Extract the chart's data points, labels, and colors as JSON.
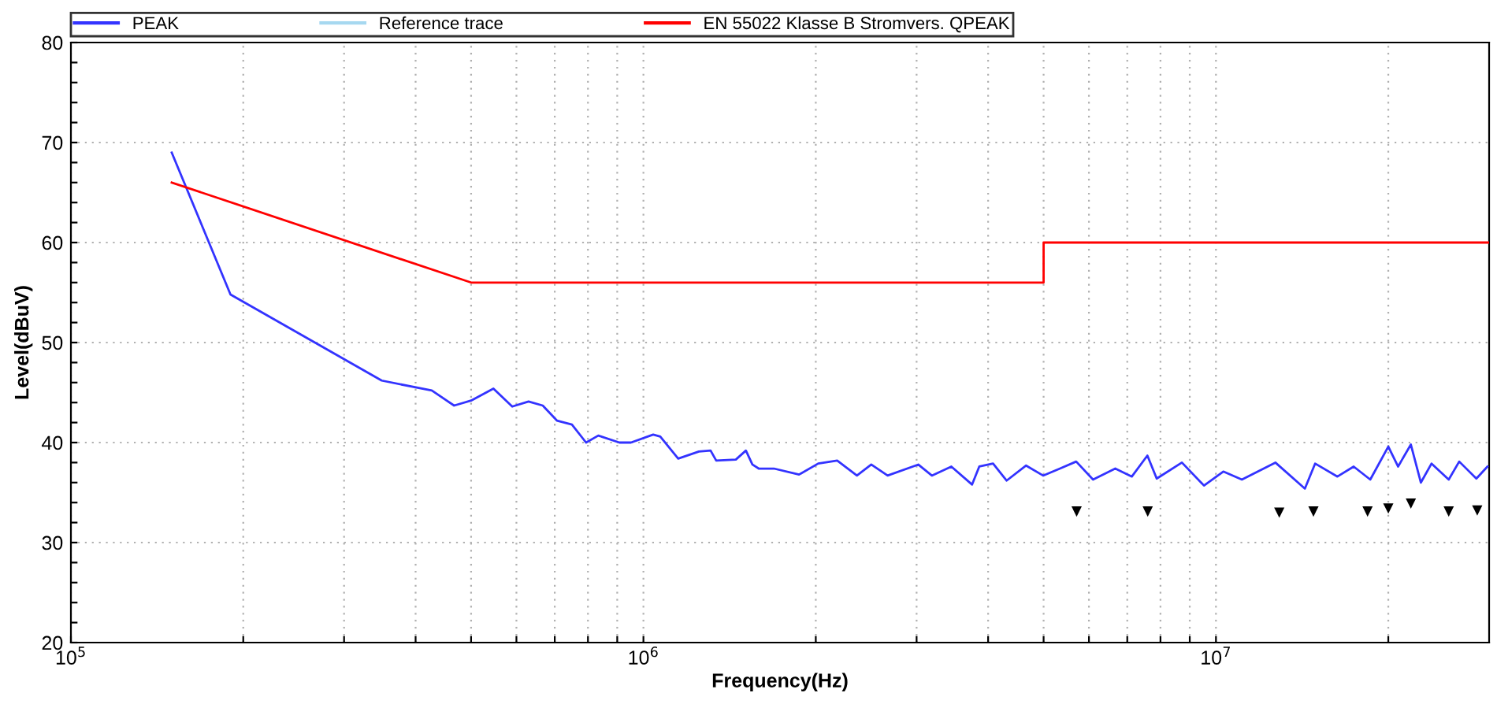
{
  "chart_data": {
    "type": "line",
    "xlabel": "Frequency(Hz)",
    "ylabel": "Level(dBuV)",
    "log": "x",
    "grid": true,
    "legend": "top",
    "line_style": "solid",
    "marker": "none",
    "xlim": [
      100000,
      30000000
    ],
    "ylim": [
      20,
      80
    ],
    "xticks": [
      {
        "value": 100000,
        "label": "10$^{5}$"
      },
      {
        "value": 200000,
        "label": null
      },
      {
        "value": 300000,
        "label": null
      },
      {
        "value": 400000,
        "label": null
      },
      {
        "value": 500000,
        "label": null
      },
      {
        "value": 600000,
        "label": null
      },
      {
        "value": 700000,
        "label": null
      },
      {
        "value": 800000,
        "label": null
      },
      {
        "value": 900000,
        "label": null
      },
      {
        "value": 1000000,
        "label": "10$^{6}$"
      },
      {
        "value": 2000000,
        "label": null
      },
      {
        "value": 3000000,
        "label": null
      },
      {
        "value": 4000000,
        "label": null
      },
      {
        "value": 5000000,
        "label": null
      },
      {
        "value": 6000000,
        "label": null
      },
      {
        "value": 7000000,
        "label": null
      },
      {
        "value": 8000000,
        "label": null
      },
      {
        "value": 9000000,
        "label": null
      },
      {
        "value": 10000000,
        "label": "10$^{7}$"
      },
      {
        "value": 20000000,
        "label": null
      }
    ],
    "yticks": [
      20,
      {
        "value": 22,
        "label": null
      },
      {
        "value": 24,
        "label": null
      },
      {
        "value": 26,
        "label": null
      },
      {
        "value": 28,
        "label": null
      },
      30,
      {
        "value": 32,
        "label": null
      },
      {
        "value": 34,
        "label": null
      },
      {
        "value": 36,
        "label": null
      },
      {
        "value": 38,
        "label": null
      },
      40,
      {
        "value": 42,
        "label": null
      },
      {
        "value": 44,
        "label": null
      },
      {
        "value": 46,
        "label": null
      },
      {
        "value": 48,
        "label": null
      },
      50,
      {
        "value": 52,
        "label": null
      },
      {
        "value": 54,
        "label": null
      },
      {
        "value": 56,
        "label": null
      },
      {
        "value": 58,
        "label": null
      },
      60,
      {
        "value": 62,
        "label": null
      },
      {
        "value": 64,
        "label": null
      },
      {
        "value": 66,
        "label": null
      },
      {
        "value": 68,
        "label": null
      },
      70,
      {
        "value": 72,
        "label": null
      },
      {
        "value": 74,
        "label": null
      },
      {
        "value": 76,
        "label": null
      },
      {
        "value": 78,
        "label": null
      },
      80
    ],
    "series": [
      {
        "name": "PEAK",
        "color": "#3333ff",
        "x": [
          150000,
          190000,
          349000,
          427000,
          467000,
          500000,
          547000,
          590000,
          630000,
          667000,
          706000,
          750000,
          794000,
          834000,
          908000,
          951000,
          1040000,
          1070000,
          1150000,
          1250000,
          1310000,
          1340000,
          1450000,
          1510000,
          1550000,
          1590000,
          1690000,
          1870000,
          2020000,
          2180000,
          2360000,
          2500000,
          2670000,
          3020000,
          3190000,
          3450000,
          3750000,
          3860000,
          4080000,
          4310000,
          4660000,
          4990000,
          5340000,
          5700000,
          6100000,
          6670000,
          7130000,
          7590000,
          7880000,
          8720000,
          9530000,
          10300000,
          11100000,
          12700000,
          14300000,
          14900000,
          16300000,
          17400000,
          18600000,
          20000000,
          20800000,
          21900000,
          22800000,
          23800000,
          25500000,
          26600000,
          28500000,
          29800000
        ],
        "values": [
          69.0,
          54.8,
          46.2,
          45.2,
          43.7,
          44.2,
          45.4,
          43.6,
          44.1,
          43.7,
          42.2,
          41.8,
          40.0,
          40.7,
          40.0,
          40.0,
          40.8,
          40.6,
          38.4,
          39.1,
          39.2,
          38.2,
          38.3,
          39.2,
          37.8,
          37.4,
          37.4,
          36.8,
          37.9,
          38.2,
          36.7,
          37.8,
          36.7,
          37.8,
          36.7,
          37.6,
          35.8,
          37.6,
          37.9,
          36.2,
          37.7,
          36.7,
          37.4,
          38.1,
          36.3,
          37.4,
          36.6,
          38.7,
          36.4,
          38.0,
          35.7,
          37.1,
          36.3,
          38.0,
          35.4,
          37.9,
          36.6,
          37.6,
          36.3,
          39.6,
          37.6,
          39.8,
          36.0,
          37.9,
          36.3,
          38.1,
          36.4,
          37.6
        ]
      },
      {
        "name": "Reference trace",
        "color": "#a6d8f0"
      },
      {
        "name": "EN 55022 Klasse B Stromvers. QPEAK",
        "color": "#ff0000",
        "x": [
          150000,
          500000,
          5000000,
          5000000,
          30000000
        ],
        "values": [
          66,
          56,
          56,
          60,
          60
        ]
      },
      {
        "type": "scatter",
        "marker": "triangle",
        "color": "#000000",
        "x": [
          5710000,
          7600000,
          12900000,
          14800000,
          18400000,
          20000000,
          21900000,
          25500000,
          28600000
        ],
        "values": [
          33.1,
          33.1,
          33.0,
          33.1,
          33.1,
          33.4,
          33.9,
          33.1,
          33.2
        ]
      }
    ]
  }
}
